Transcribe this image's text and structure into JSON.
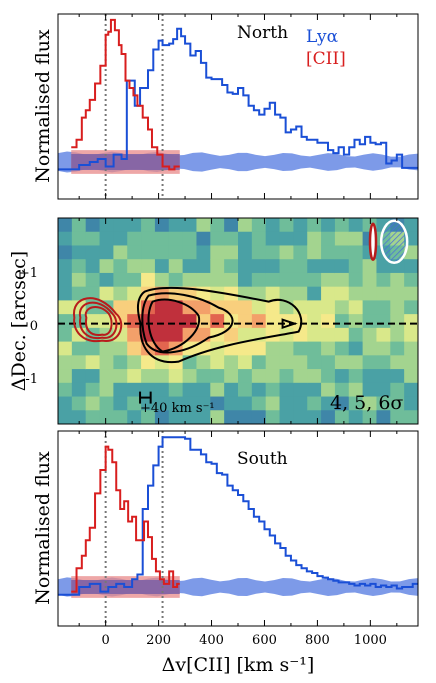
{
  "colors": {
    "lya": "#1a4fd6",
    "cii": "#d81e1e",
    "lya_noise": "#6f8fe6",
    "cii_noise": "#e88a8a",
    "contour_cii": "#b81c1c",
    "contour_lya": "#000000"
  },
  "axes": {
    "xlabel": "Δv[CII] [km s⁻¹]",
    "ylabel_top": "Normalised flux",
    "ylabel_mid": "ΔDec. [arcsec]",
    "ylabel_bot": "Normalised flux",
    "x_ticks": [
      "0",
      "200",
      "400",
      "600",
      "800",
      "1000"
    ],
    "y_ticks_mid": [
      "+1",
      "0",
      "-1"
    ]
  },
  "panels": {
    "north": {
      "title": "North",
      "legend_lya": "Lyα",
      "legend_cii": "[CII]"
    },
    "middle": {
      "sigma_label": "4, 5, 6σ",
      "scalebar_label": "+40 km s⁻¹"
    },
    "south": {
      "title": "South"
    }
  },
  "chart_data": [
    {
      "type": "line",
      "name": "North spectrum",
      "xlim": [
        -180,
        1180
      ],
      "ylim": [
        -0.25,
        1.0
      ],
      "vlines": [
        0,
        215
      ],
      "series": [
        {
          "name": "Lyα",
          "step": true,
          "points": [
            [
              -180,
              -0.05
            ],
            [
              -140,
              -0.05
            ],
            [
              -100,
              -0.02
            ],
            [
              -60,
              0.0
            ],
            [
              -30,
              0.02
            ],
            [
              0,
              -0.03
            ],
            [
              30,
              0.05
            ],
            [
              60,
              0.02
            ],
            [
              80,
              0.55
            ],
            [
              110,
              0.38
            ],
            [
              130,
              0.5
            ],
            [
              160,
              0.62
            ],
            [
              180,
              0.76
            ],
            [
              200,
              0.82
            ],
            [
              215,
              0.79
            ],
            [
              240,
              0.8
            ],
            [
              255,
              0.83
            ],
            [
              270,
              0.9
            ],
            [
              285,
              0.85
            ],
            [
              300,
              0.8
            ],
            [
              320,
              0.72
            ],
            [
              340,
              0.75
            ],
            [
              360,
              0.67
            ],
            [
              380,
              0.57
            ],
            [
              400,
              0.56
            ],
            [
              420,
              0.56
            ],
            [
              440,
              0.52
            ],
            [
              460,
              0.47
            ],
            [
              480,
              0.46
            ],
            [
              500,
              0.5
            ],
            [
              520,
              0.45
            ],
            [
              540,
              0.38
            ],
            [
              560,
              0.35
            ],
            [
              580,
              0.32
            ],
            [
              600,
              0.36
            ],
            [
              620,
              0.4
            ],
            [
              640,
              0.32
            ],
            [
              660,
              0.3
            ],
            [
              680,
              0.2
            ],
            [
              700,
              0.22
            ],
            [
              720,
              0.24
            ],
            [
              740,
              0.17
            ],
            [
              760,
              0.15
            ],
            [
              780,
              0.15
            ],
            [
              800,
              0.13
            ],
            [
              820,
              0.13
            ],
            [
              840,
              0.08
            ],
            [
              860,
              0.06
            ],
            [
              880,
              0.1
            ],
            [
              900,
              0.05
            ],
            [
              920,
              0.1
            ],
            [
              940,
              0.15
            ],
            [
              960,
              0.12
            ],
            [
              980,
              0.17
            ],
            [
              1000,
              0.13
            ],
            [
              1020,
              0.12
            ],
            [
              1040,
              0.13
            ],
            [
              1060,
              -0.01
            ],
            [
              1080,
              0.01
            ],
            [
              1100,
              0.05
            ],
            [
              1120,
              -0.04
            ],
            [
              1140,
              -0.04
            ],
            [
              1180,
              -0.04
            ]
          ]
        },
        {
          "name": "[CII]",
          "step": true,
          "points": [
            [
              -130,
              0.1
            ],
            [
              -110,
              0.15
            ],
            [
              -90,
              0.3
            ],
            [
              -75,
              0.35
            ],
            [
              -60,
              0.42
            ],
            [
              -40,
              0.53
            ],
            [
              -20,
              0.65
            ],
            [
              0,
              0.86
            ],
            [
              10,
              0.88
            ],
            [
              20,
              0.96
            ],
            [
              35,
              0.89
            ],
            [
              50,
              0.79
            ],
            [
              60,
              0.73
            ],
            [
              75,
              0.55
            ],
            [
              90,
              0.5
            ],
            [
              105,
              0.45
            ],
            [
              120,
              0.38
            ],
            [
              140,
              0.3
            ],
            [
              160,
              0.22
            ],
            [
              175,
              0.1
            ],
            [
              195,
              0.05
            ],
            [
              215,
              -0.03
            ],
            [
              240,
              -0.05
            ],
            [
              260,
              -0.03
            ],
            [
              280,
              -0.03
            ]
          ]
        }
      ],
      "noise_band_lya": {
        "center": 0.0,
        "half_width_start": 0.06,
        "half_width_end": 0.045
      },
      "noise_band_cii": {
        "x_range": [
          -130,
          280
        ],
        "center": 0.0,
        "half_width": 0.08
      }
    },
    {
      "type": "heatmap",
      "name": "Position-velocity map",
      "xlim": [
        -180,
        1180
      ],
      "ylim": [
        -1.9,
        2.0
      ],
      "contour_levels": [
        "4σ",
        "5σ",
        "6σ"
      ],
      "lya_peak_velocity": 200,
      "cii_peak_velocity": -20,
      "dashed_line_y": 0,
      "beam_cii_velocity": 1010,
      "beam_lya_velocity": 1090
    },
    {
      "type": "line",
      "name": "South spectrum",
      "xlim": [
        -180,
        1180
      ],
      "ylim": [
        -0.25,
        1.0
      ],
      "vlines": [
        0,
        215
      ],
      "series": [
        {
          "name": "Lyα",
          "step": true,
          "points": [
            [
              -180,
              -0.05
            ],
            [
              -130,
              -0.05
            ],
            [
              -100,
              0.0
            ],
            [
              -60,
              0.02
            ],
            [
              -20,
              -0.03
            ],
            [
              10,
              0.0
            ],
            [
              40,
              0.02
            ],
            [
              70,
              0.0
            ],
            [
              100,
              0.05
            ],
            [
              120,
              0.08
            ],
            [
              140,
              0.5
            ],
            [
              160,
              0.65
            ],
            [
              180,
              0.78
            ],
            [
              200,
              0.9
            ],
            [
              215,
              0.96
            ],
            [
              240,
              0.96
            ],
            [
              260,
              0.96
            ],
            [
              280,
              0.96
            ],
            [
              300,
              0.95
            ],
            [
              320,
              0.88
            ],
            [
              340,
              0.88
            ],
            [
              360,
              0.85
            ],
            [
              380,
              0.8
            ],
            [
              400,
              0.79
            ],
            [
              420,
              0.73
            ],
            [
              440,
              0.72
            ],
            [
              460,
              0.65
            ],
            [
              480,
              0.62
            ],
            [
              500,
              0.59
            ],
            [
              520,
              0.55
            ],
            [
              540,
              0.5
            ],
            [
              560,
              0.45
            ],
            [
              580,
              0.42
            ],
            [
              600,
              0.37
            ],
            [
              620,
              0.33
            ],
            [
              640,
              0.28
            ],
            [
              660,
              0.25
            ],
            [
              680,
              0.2
            ],
            [
              700,
              0.17
            ],
            [
              720,
              0.14
            ],
            [
              740,
              0.12
            ],
            [
              760,
              0.1
            ],
            [
              780,
              0.09
            ],
            [
              800,
              0.07
            ],
            [
              820,
              0.06
            ],
            [
              840,
              0.05
            ],
            [
              860,
              0.04
            ],
            [
              880,
              0.03
            ],
            [
              900,
              0.03
            ],
            [
              920,
              0.02
            ],
            [
              940,
              0.01
            ],
            [
              960,
              0.02
            ],
            [
              980,
              0.01
            ],
            [
              1000,
              0.02
            ],
            [
              1020,
              0.0
            ],
            [
              1040,
              0.01
            ],
            [
              1060,
              0.0
            ],
            [
              1080,
              0.01
            ],
            [
              1100,
              -0.01
            ],
            [
              1120,
              0.0
            ],
            [
              1140,
              0.0
            ],
            [
              1160,
              0.02
            ],
            [
              1180,
              0.02
            ]
          ]
        },
        {
          "name": "[CII]",
          "step": true,
          "points": [
            [
              -130,
              -0.03
            ],
            [
              -110,
              0.12
            ],
            [
              -90,
              0.2
            ],
            [
              -75,
              0.3
            ],
            [
              -60,
              0.38
            ],
            [
              -40,
              0.6
            ],
            [
              -20,
              0.75
            ],
            [
              0,
              0.9
            ],
            [
              10,
              0.88
            ],
            [
              25,
              0.8
            ],
            [
              40,
              0.62
            ],
            [
              55,
              0.5
            ],
            [
              70,
              0.55
            ],
            [
              85,
              0.42
            ],
            [
              100,
              0.45
            ],
            [
              115,
              0.3
            ],
            [
              130,
              0.3
            ],
            [
              145,
              0.42
            ],
            [
              160,
              0.32
            ],
            [
              175,
              0.18
            ],
            [
              190,
              0.1
            ],
            [
              205,
              0.05
            ],
            [
              220,
              0.02
            ],
            [
              240,
              0.1
            ],
            [
              255,
              0.0
            ],
            [
              270,
              0.02
            ],
            [
              280,
              0.02
            ]
          ]
        }
      ],
      "noise_band_lya": {
        "center": 0.0,
        "half_width_start": 0.05,
        "half_width_end": 0.045
      },
      "noise_band_cii": {
        "x_range": [
          -130,
          280
        ],
        "center": 0.0,
        "half_width": 0.07
      }
    }
  ]
}
